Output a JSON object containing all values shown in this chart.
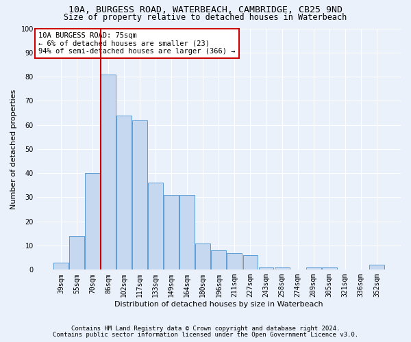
{
  "title1": "10A, BURGESS ROAD, WATERBEACH, CAMBRIDGE, CB25 9ND",
  "title2": "Size of property relative to detached houses in Waterbeach",
  "xlabel": "Distribution of detached houses by size in Waterbeach",
  "ylabel": "Number of detached properties",
  "categories": [
    "39sqm",
    "55sqm",
    "70sqm",
    "86sqm",
    "102sqm",
    "117sqm",
    "133sqm",
    "149sqm",
    "164sqm",
    "180sqm",
    "196sqm",
    "211sqm",
    "227sqm",
    "243sqm",
    "258sqm",
    "274sqm",
    "289sqm",
    "305sqm",
    "321sqm",
    "336sqm",
    "352sqm"
  ],
  "values": [
    3,
    14,
    40,
    81,
    64,
    62,
    36,
    31,
    31,
    11,
    8,
    7,
    6,
    1,
    1,
    0,
    1,
    1,
    0,
    0,
    2
  ],
  "bar_color": "#c5d8f0",
  "bar_edge_color": "#5b9bd5",
  "vline_x_pos": 2.5,
  "vline_color": "#cc0000",
  "annotation_text": "10A BURGESS ROAD: 75sqm\n← 6% of detached houses are smaller (23)\n94% of semi-detached houses are larger (366) →",
  "annotation_box_color": "#ffffff",
  "annotation_box_edge_color": "#cc0000",
  "ylim": [
    0,
    100
  ],
  "yticks": [
    0,
    10,
    20,
    30,
    40,
    50,
    60,
    70,
    80,
    90,
    100
  ],
  "footer1": "Contains HM Land Registry data © Crown copyright and database right 2024.",
  "footer2": "Contains public sector information licensed under the Open Government Licence v3.0.",
  "background_color": "#eaf1fb",
  "plot_background": "#eaf1fb",
  "grid_color": "#ffffff",
  "title1_fontsize": 9.5,
  "title2_fontsize": 8.5,
  "xlabel_fontsize": 8,
  "ylabel_fontsize": 8,
  "tick_fontsize": 7,
  "annotation_fontsize": 7.5,
  "footer_fontsize": 6.5
}
